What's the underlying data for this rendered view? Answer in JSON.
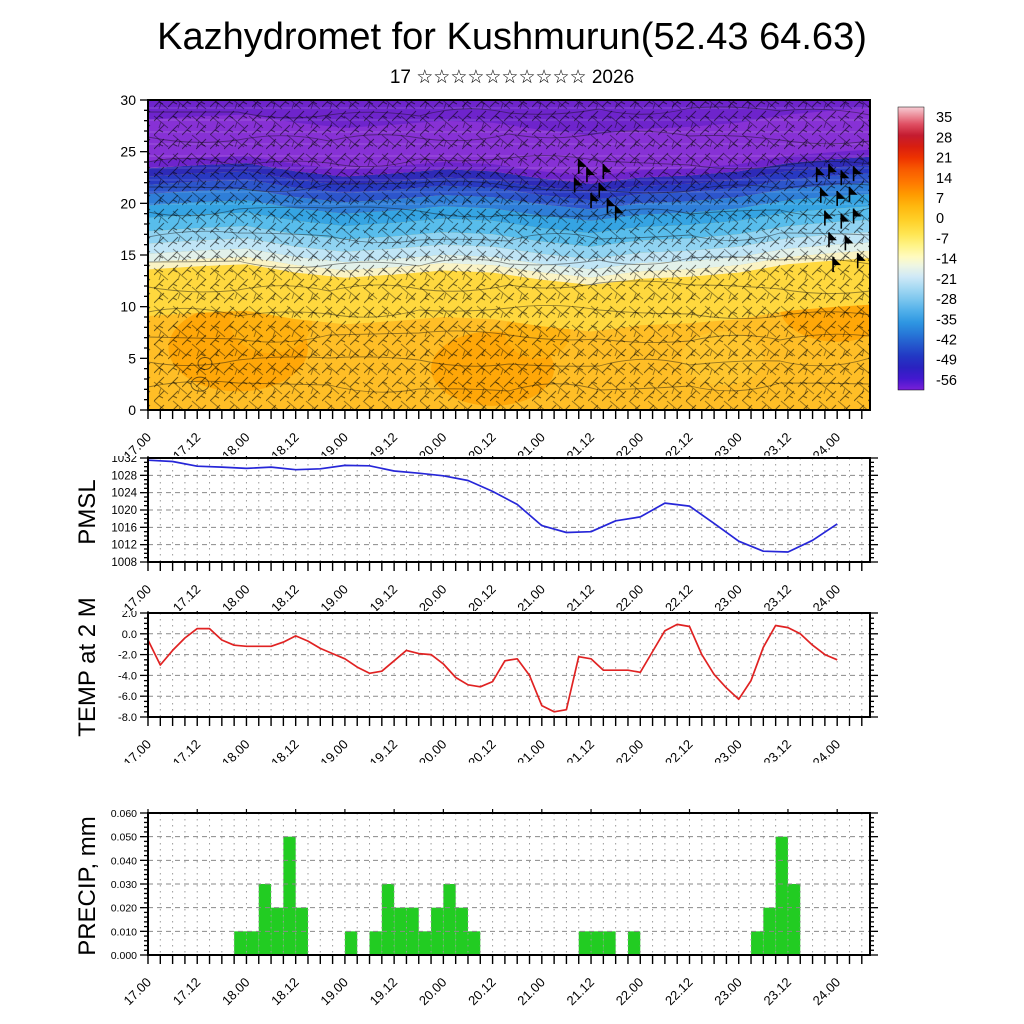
{
  "title": "Kazhydromet for Kushmurun(52.43 64.63)",
  "subtitle": "17 ☆☆☆☆☆☆☆☆☆☆ 2026",
  "panel_labels": {
    "pmsl": "PMSL",
    "temp": "TEMP at 2 M",
    "precip": "PRECIP, mm"
  },
  "x_axis": {
    "tick_labels": [
      "17.00",
      "17.12",
      "18.00",
      "18.12",
      "19.00",
      "19.12",
      "20.00",
      "20.12",
      "21.00",
      "21.12",
      "22.00",
      "22.12",
      "23.00",
      "23.12",
      "24.00"
    ],
    "label_step_hours": 12,
    "minor_step_hours": 3,
    "total_hours": 176,
    "data_end_hours": 168
  },
  "colorbar": {
    "tick_labels": [
      "35",
      "28",
      "21",
      "14",
      "7",
      "0",
      "-7",
      "-14",
      "-21",
      "-28",
      "-35",
      "-42",
      "-49",
      "-56"
    ],
    "gradient": [
      {
        "p": 0,
        "c": "#f7ccd4"
      },
      {
        "p": 3,
        "c": "#ec8f9b"
      },
      {
        "p": 6,
        "c": "#e05064"
      },
      {
        "p": 10,
        "c": "#c41c30"
      },
      {
        "p": 14,
        "c": "#d81e10"
      },
      {
        "p": 18,
        "c": "#ee3300"
      },
      {
        "p": 22,
        "c": "#f85a00"
      },
      {
        "p": 27,
        "c": "#ff7b00"
      },
      {
        "p": 31,
        "c": "#ff9b00"
      },
      {
        "p": 35,
        "c": "#ffb70e"
      },
      {
        "p": 40,
        "c": "#ffd028"
      },
      {
        "p": 45,
        "c": "#ffe654"
      },
      {
        "p": 49,
        "c": "#fff488"
      },
      {
        "p": 53,
        "c": "#fffbc0"
      },
      {
        "p": 56,
        "c": "#eef6e2"
      },
      {
        "p": 60,
        "c": "#cfe9f7"
      },
      {
        "p": 64,
        "c": "#a5d9f3"
      },
      {
        "p": 68,
        "c": "#7cc6ee"
      },
      {
        "p": 72,
        "c": "#51b0ea"
      },
      {
        "p": 76,
        "c": "#2f97e2"
      },
      {
        "p": 80,
        "c": "#2779d8"
      },
      {
        "p": 84,
        "c": "#2458cd"
      },
      {
        "p": 88,
        "c": "#2238c4"
      },
      {
        "p": 92,
        "c": "#2a22c0"
      },
      {
        "p": 96,
        "c": "#4318cf"
      },
      {
        "p": 100,
        "c": "#7a1fd8"
      }
    ]
  },
  "chart_data": [
    {
      "type": "heatmap",
      "name": "wind-temperature-cross-section",
      "ylim": [
        0,
        30
      ],
      "yticks": [
        0,
        5,
        10,
        15,
        20,
        25,
        30
      ],
      "base_color": "#ffbe26",
      "boundary_points": [
        [
          0,
          13.6
        ],
        [
          12,
          13.9
        ],
        [
          24,
          14.1
        ],
        [
          36,
          13.3
        ],
        [
          48,
          12.8
        ],
        [
          60,
          13.1
        ],
        [
          72,
          13.5
        ],
        [
          84,
          13.3
        ],
        [
          96,
          12.6
        ],
        [
          108,
          12.1
        ],
        [
          120,
          12.7
        ],
        [
          132,
          12.9
        ],
        [
          144,
          13.3
        ],
        [
          156,
          14.1
        ],
        [
          168,
          14.5
        ],
        [
          176,
          14.7
        ]
      ],
      "bands": [
        {
          "o0": -4.5,
          "o1": 0.0,
          "c": "#ffd83e"
        },
        {
          "o0": 0.0,
          "o1": 0.7,
          "c": "#faf3c4"
        },
        {
          "o0": 0.7,
          "o1": 1.5,
          "c": "#e2f1ea"
        },
        {
          "o0": 1.5,
          "o1": 2.5,
          "c": "#c0e5f6"
        },
        {
          "o0": 2.5,
          "o1": 3.7,
          "c": "#90d3f2"
        },
        {
          "o0": 3.7,
          "o1": 5.0,
          "c": "#58bdec"
        },
        {
          "o0": 5.0,
          "o1": 6.2,
          "c": "#35a4e3"
        },
        {
          "o0": 6.2,
          "o1": 7.3,
          "c": "#2e7ed8"
        },
        {
          "o0": 7.3,
          "o1": 8.2,
          "c": "#2c55cc"
        },
        {
          "o0": 8.2,
          "o1": 9.0,
          "c": "#2839c2"
        },
        {
          "o0": 9.0,
          "o1": 9.8,
          "c": "#2e2ab8"
        },
        {
          "o0": 9.8,
          "o1": 31.0,
          "c": "#6e24cc"
        }
      ],
      "magenta_band": {
        "o0": 10.5,
        "o1": 14.5,
        "c": "#9036d8",
        "opacity": 0.75
      },
      "warm_blobs": [
        {
          "h": 22,
          "y": 6.0,
          "rh": 17,
          "ry": 4.2,
          "c": "#ffa405"
        },
        {
          "h": 30,
          "y": 8.5,
          "rh": 10,
          "ry": 3.0,
          "c": "#ffb312"
        },
        {
          "h": 84,
          "y": 4.0,
          "rh": 15,
          "ry": 3.6,
          "c": "#ffa405"
        },
        {
          "h": 95,
          "y": 7.5,
          "rh": 8,
          "ry": 2.5,
          "c": "#ffb312"
        },
        {
          "h": 168,
          "y": 10.0,
          "rh": 14,
          "ry": 3.4,
          "c": "#ffa405"
        },
        {
          "h": 140,
          "y": 5.0,
          "rh": 10,
          "ry": 2.6,
          "c": "#ffc630"
        }
      ],
      "pennant_clusters": [
        [
          [
            104,
            22.5
          ],
          [
            107,
            23.5
          ],
          [
            110,
            22.0
          ],
          [
            108,
            21.0
          ],
          [
            112,
            20.5
          ],
          [
            105,
            24.3
          ],
          [
            114,
            19.8
          ],
          [
            111,
            23.8
          ]
        ],
        [
          [
            163,
            23.5
          ],
          [
            166,
            23.8
          ],
          [
            169,
            23.2
          ],
          [
            172,
            23.6
          ],
          [
            164,
            21.5
          ],
          [
            168,
            21.2
          ],
          [
            171,
            21.6
          ],
          [
            165,
            19.3
          ],
          [
            169,
            19.0
          ],
          [
            172,
            19.5
          ],
          [
            166,
            17.2
          ],
          [
            170,
            16.9
          ],
          [
            173,
            15.2
          ],
          [
            167,
            14.8
          ]
        ]
      ]
    },
    {
      "type": "line",
      "name": "pmsl",
      "color": "#2626d8",
      "ylim": [
        1008,
        1032
      ],
      "ytick_major": 4,
      "ytick_minor": 1,
      "x_step_hours": 6,
      "values": [
        1031.5,
        1031.2,
        1030.1,
        1029.9,
        1029.6,
        1029.9,
        1029.3,
        1029.5,
        1030.3,
        1030.2,
        1029.0,
        1028.5,
        1027.9,
        1026.8,
        1024.3,
        1021.3,
        1016.4,
        1014.8,
        1015.0,
        1017.5,
        1018.4,
        1021.6,
        1020.9,
        1016.9,
        1012.8,
        1010.5,
        1010.3,
        1013.0,
        1016.8
      ]
    },
    {
      "type": "line",
      "name": "temp-2m",
      "color": "#e02222",
      "ylim": [
        -8,
        2
      ],
      "ytick_major": 2,
      "ytick_minor": 0.5,
      "x_step_hours": 3,
      "values": [
        -0.6,
        -3.0,
        -1.6,
        -0.4,
        0.5,
        0.5,
        -0.6,
        -1.1,
        -1.2,
        -1.2,
        -1.2,
        -0.8,
        -0.2,
        -0.7,
        -1.4,
        -1.9,
        -2.4,
        -3.2,
        -3.8,
        -3.6,
        -2.6,
        -1.6,
        -1.9,
        -2.0,
        -2.9,
        -4.2,
        -4.9,
        -5.1,
        -4.6,
        -2.6,
        -2.4,
        -4.0,
        -6.9,
        -7.5,
        -7.3,
        -2.2,
        -2.4,
        -3.5,
        -3.5,
        -3.5,
        -3.7,
        -1.7,
        0.3,
        0.9,
        0.7,
        -2.0,
        -3.9,
        -5.2,
        -6.3,
        -4.5,
        -1.3,
        0.8,
        0.6,
        0.0,
        -1.1,
        -2.0,
        -2.5
      ]
    },
    {
      "type": "bar",
      "name": "precip",
      "color": "#22cc22",
      "ylim": [
        0,
        0.06
      ],
      "ytick_major": 0.01,
      "ytick_minor": 0.002,
      "slot_hours": 3,
      "values": [
        0,
        0,
        0,
        0,
        0,
        0,
        0,
        0.01,
        0.01,
        0.03,
        0.02,
        0.05,
        0.02,
        0,
        0,
        0,
        0.01,
        0,
        0.01,
        0.03,
        0.02,
        0.02,
        0.01,
        0.02,
        0.03,
        0.02,
        0.01,
        0,
        0,
        0,
        0,
        0,
        0,
        0,
        0,
        0.01,
        0.01,
        0.01,
        0,
        0.01,
        0,
        0,
        0,
        0,
        0,
        0,
        0,
        0,
        0,
        0.01,
        0.02,
        0.05,
        0.03,
        0,
        0,
        0
      ]
    }
  ]
}
